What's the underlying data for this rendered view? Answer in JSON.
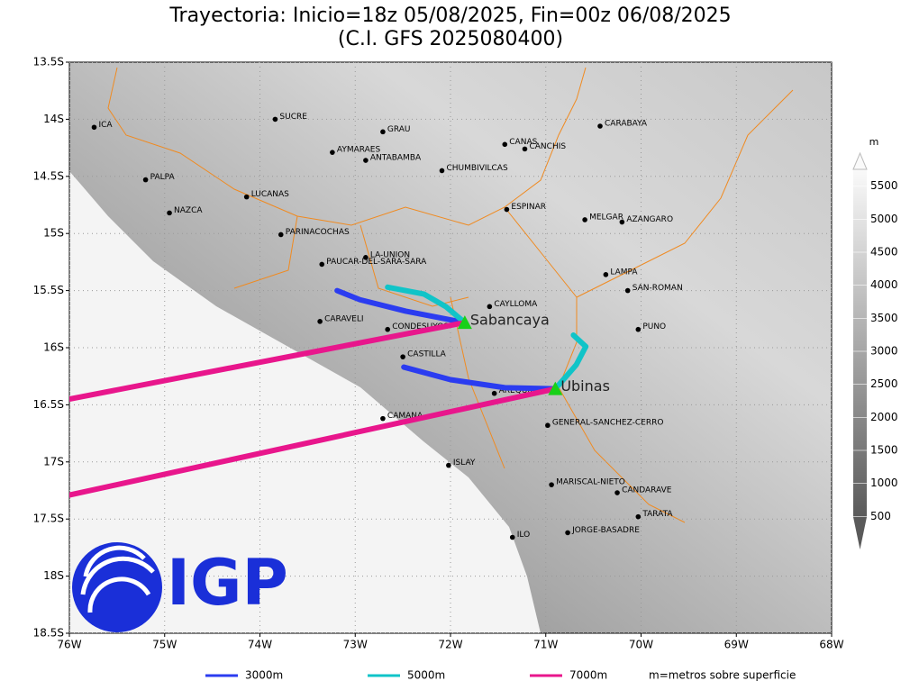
{
  "header": {
    "title": "Trayectoria: Inicio=18z 05/08/2025, Fin=00z 06/08/2025",
    "subtitle": "(C.I. GFS 2025080400)"
  },
  "map": {
    "xlim": [
      -76,
      -68
    ],
    "ylim": [
      -18.5,
      -13.5
    ],
    "xticks": [
      {
        "value": -76,
        "label": "76W"
      },
      {
        "value": -75,
        "label": "75W"
      },
      {
        "value": -74,
        "label": "74W"
      },
      {
        "value": -73,
        "label": "73W"
      },
      {
        "value": -72,
        "label": "72W"
      },
      {
        "value": -71,
        "label": "71W"
      },
      {
        "value": -70,
        "label": "70W"
      },
      {
        "value": -69,
        "label": "69W"
      },
      {
        "value": -68,
        "label": "68W"
      }
    ],
    "yticks": [
      {
        "value": -13.5,
        "label": "13.5S"
      },
      {
        "value": -14,
        "label": "14S"
      },
      {
        "value": -14.5,
        "label": "14.5S"
      },
      {
        "value": -15,
        "label": "15S"
      },
      {
        "value": -15.5,
        "label": "15.5S"
      },
      {
        "value": -16,
        "label": "16S"
      },
      {
        "value": -16.5,
        "label": "16.5S"
      },
      {
        "value": -17,
        "label": "17S"
      },
      {
        "value": -17.5,
        "label": "17.5S"
      },
      {
        "value": -18,
        "label": "18S"
      },
      {
        "value": -18.5,
        "label": "18.5S"
      }
    ]
  },
  "colorbar": {
    "unit": "m",
    "lim": [
      0,
      6000
    ],
    "ticks": [
      500,
      1000,
      1500,
      2000,
      2500,
      3000,
      3500,
      4000,
      4500,
      5000,
      5500
    ]
  },
  "places": [
    {
      "name": "ICA",
      "lon": -75.74,
      "lat": -14.07
    },
    {
      "name": "SUCRE",
      "lon": -73.84,
      "lat": -14.0
    },
    {
      "name": "GRAU",
      "lon": -72.71,
      "lat": -14.11
    },
    {
      "name": "CANAS",
      "lon": -71.43,
      "lat": -14.22
    },
    {
      "name": "CANCHIS",
      "lon": -71.22,
      "lat": -14.26
    },
    {
      "name": "CARABAYA",
      "lon": -70.43,
      "lat": -14.06
    },
    {
      "name": "AYMARAES",
      "lon": -73.24,
      "lat": -14.29
    },
    {
      "name": "ANTABAMBA",
      "lon": -72.89,
      "lat": -14.36
    },
    {
      "name": "CHUMBIVILCAS",
      "lon": -72.09,
      "lat": -14.45
    },
    {
      "name": "PALPA",
      "lon": -75.2,
      "lat": -14.53
    },
    {
      "name": "LUCANAS",
      "lon": -74.14,
      "lat": -14.68
    },
    {
      "name": "NAZCA",
      "lon": -74.95,
      "lat": -14.82
    },
    {
      "name": "ESPINAR",
      "lon": -71.41,
      "lat": -14.79
    },
    {
      "name": "MELGAR",
      "lon": -70.59,
      "lat": -14.88
    },
    {
      "name": "AZANGARO",
      "lon": -70.2,
      "lat": -14.9
    },
    {
      "name": "PARINACOCHAS",
      "lon": -73.78,
      "lat": -15.01
    },
    {
      "name": "LA-UNION",
      "lon": -72.89,
      "lat": -15.21
    },
    {
      "name": "PAUCAR-DEL-SARA-SARA",
      "lon": -73.35,
      "lat": -15.27
    },
    {
      "name": "LAMPA",
      "lon": -70.37,
      "lat": -15.36
    },
    {
      "name": "SAN-ROMAN",
      "lon": -70.14,
      "lat": -15.5
    },
    {
      "name": "CAYLLOMA",
      "lon": -71.59,
      "lat": -15.64
    },
    {
      "name": "CARAVELI",
      "lon": -73.37,
      "lat": -15.77
    },
    {
      "name": "CONDESUYOS",
      "lon": -72.66,
      "lat": -15.84
    },
    {
      "name": "PUNO",
      "lon": -70.03,
      "lat": -15.84
    },
    {
      "name": "CASTILLA",
      "lon": -72.5,
      "lat": -16.08
    },
    {
      "name": "AREQUIPA",
      "lon": -71.54,
      "lat": -16.4
    },
    {
      "name": "CAMANA",
      "lon": -72.71,
      "lat": -16.62
    },
    {
      "name": "GENERAL-SANCHEZ-CERRO",
      "lon": -70.98,
      "lat": -16.68
    },
    {
      "name": "ISLAY",
      "lon": -72.02,
      "lat": -17.03
    },
    {
      "name": "MARISCAL-NIETO",
      "lon": -70.94,
      "lat": -17.2
    },
    {
      "name": "CANDARAVE",
      "lon": -70.25,
      "lat": -17.27
    },
    {
      "name": "TARATA",
      "lon": -70.03,
      "lat": -17.48
    },
    {
      "name": "ILO",
      "lon": -71.35,
      "lat": -17.66
    },
    {
      "name": "JORGE-BASADRE",
      "lon": -70.77,
      "lat": -17.62
    }
  ],
  "series": [
    {
      "name": "3000m",
      "color": "#2b3cf0",
      "tracks": [
        {
          "lon": [
            -71.85,
            -72.47,
            -72.95,
            -73.19
          ],
          "lat": [
            -15.78,
            -15.68,
            -15.58,
            -15.5
          ]
        },
        {
          "lon": [
            -70.9,
            -71.43,
            -72.0,
            -72.49
          ],
          "lat": [
            -16.36,
            -16.35,
            -16.28,
            -16.17
          ]
        }
      ]
    },
    {
      "name": "5000m",
      "color": "#10c4c8",
      "tracks": [
        {
          "lon": [
            -71.85,
            -72.05,
            -72.28,
            -72.66
          ],
          "lat": [
            -15.78,
            -15.64,
            -15.53,
            -15.47
          ]
        },
        {
          "lon": [
            -70.9,
            -70.68,
            -70.58,
            -70.71
          ],
          "lat": [
            -16.36,
            -16.15,
            -15.99,
            -15.89
          ]
        }
      ]
    },
    {
      "name": "7000m",
      "color": "#e8168c",
      "tracks": [
        {
          "lon": [
            -71.85,
            -76.0
          ],
          "lat": [
            -15.78,
            -16.45
          ]
        },
        {
          "lon": [
            -70.9,
            -76.0
          ],
          "lat": [
            -16.36,
            -17.29
          ]
        }
      ]
    }
  ],
  "volcanoes": [
    {
      "name": "Sabancaya",
      "lon": -71.85,
      "lat": -15.78
    },
    {
      "name": "Ubinas",
      "lon": -70.9,
      "lat": -16.36
    }
  ],
  "note": "m=metros sobre superficie",
  "logo": "IGP"
}
